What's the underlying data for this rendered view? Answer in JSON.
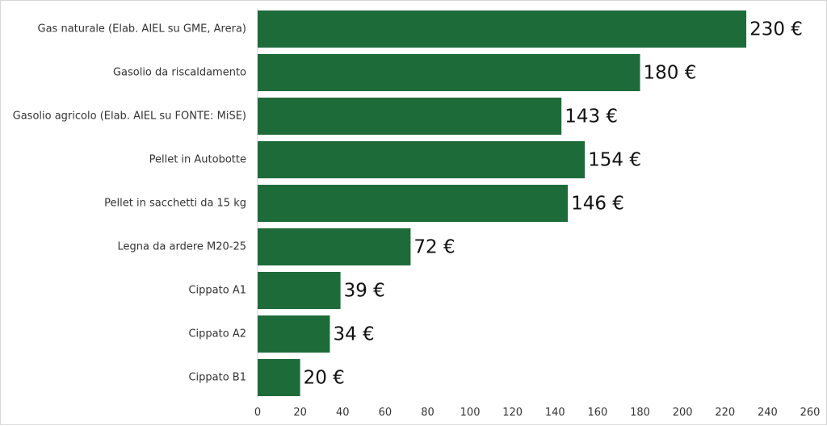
{
  "chart_data": {
    "type": "bar",
    "orientation": "horizontal",
    "categories": [
      "Gas naturale (Elab. AIEL su GME, Arera)",
      "Gasolio da riscaldamento",
      "Gasolio agricolo (Elab. AIEL su FONTE: MiSE)",
      "Pellet in Autobotte",
      "Pellet in sacchetti da 15 kg",
      "Legna da ardere M20-25",
      "Cippato A1",
      "Cippato A2",
      "Cippato B1"
    ],
    "values": [
      230,
      180,
      143,
      154,
      146,
      72,
      39,
      34,
      20
    ],
    "data_labels": [
      "230 €",
      "180 €",
      "143 €",
      "154 €",
      "146 €",
      "72 €",
      "39 €",
      "34 €",
      "20 €"
    ],
    "x_ticks": [
      "0",
      "20",
      "40",
      "60",
      "80",
      "100",
      "120",
      "140",
      "160",
      "180",
      "200",
      "220",
      "240",
      "260"
    ],
    "xlim": [
      0,
      260
    ],
    "grid": false,
    "legend": "none",
    "title": "",
    "xlabel": "",
    "ylabel": "",
    "bar_color": "#1e6b3a"
  }
}
